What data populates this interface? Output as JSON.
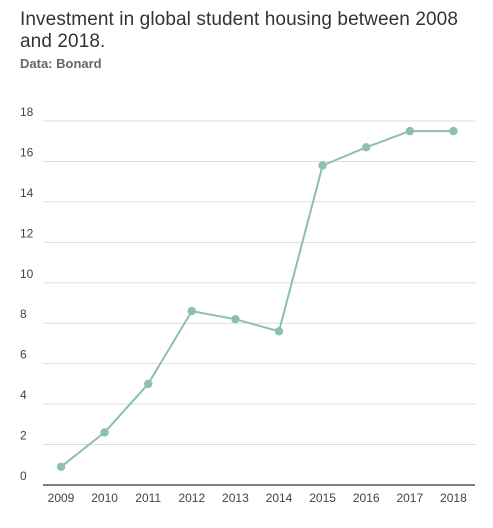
{
  "header": {
    "title": "Investment in global student housing between 2008 and 2018.",
    "subtitle": "Data: Bonard"
  },
  "chart_data": {
    "type": "line",
    "title": "Investment in global student housing between 2008 and 2018.",
    "subtitle": "Data: Bonard",
    "xlabel": "",
    "ylabel": "",
    "categories": [
      "2009",
      "2010",
      "2011",
      "2012",
      "2013",
      "2014",
      "2015",
      "2016",
      "2017",
      "2018"
    ],
    "series": [
      {
        "values": [
          0.9,
          2.6,
          5.0,
          8.6,
          8.2,
          7.6,
          15.8,
          16.7,
          17.5,
          17.5
        ]
      }
    ],
    "ylim": [
      0,
      18
    ],
    "yticks": [
      0,
      2,
      4,
      6,
      8,
      10,
      12,
      14,
      16,
      18
    ],
    "grid": true,
    "legend": "none",
    "colors": {
      "line": "#8cc0ad",
      "grid": "#dddddd",
      "baseline": "#333333",
      "text": "#444444"
    }
  }
}
